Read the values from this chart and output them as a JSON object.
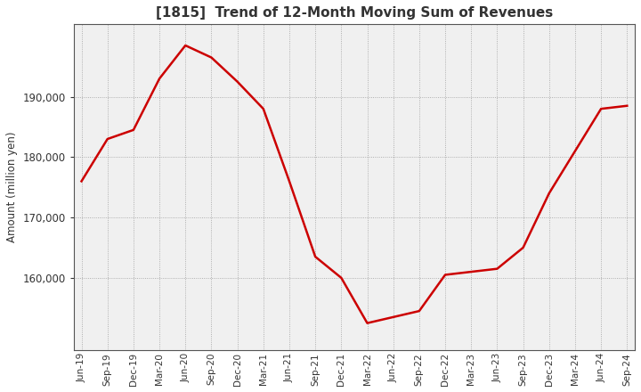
{
  "title": "[1815]  Trend of 12-Month Moving Sum of Revenues",
  "ylabel": "Amount (million yen)",
  "line_color": "#cc0000",
  "line_width": 1.8,
  "background_color": "#ffffff",
  "plot_bg_color": "#f0f0f0",
  "grid_color": "#888888",
  "title_color": "#333333",
  "labels": [
    "Jun-19",
    "Sep-19",
    "Dec-19",
    "Mar-20",
    "Jun-20",
    "Sep-20",
    "Dec-20",
    "Mar-21",
    "Jun-21",
    "Sep-21",
    "Dec-21",
    "Mar-22",
    "Jun-22",
    "Sep-22",
    "Dec-22",
    "Mar-23",
    "Jun-23",
    "Sep-23",
    "Dec-23",
    "Mar-24",
    "Jun-24",
    "Sep-24"
  ],
  "values": [
    176000,
    183000,
    184500,
    193000,
    198500,
    196500,
    192500,
    188000,
    176000,
    163500,
    160000,
    152500,
    153500,
    154500,
    160500,
    161000,
    161500,
    165000,
    174000,
    181000,
    188000,
    188500
  ],
  "yticks": [
    160000,
    170000,
    180000,
    190000
  ],
  "ylim": [
    148000,
    202000
  ]
}
